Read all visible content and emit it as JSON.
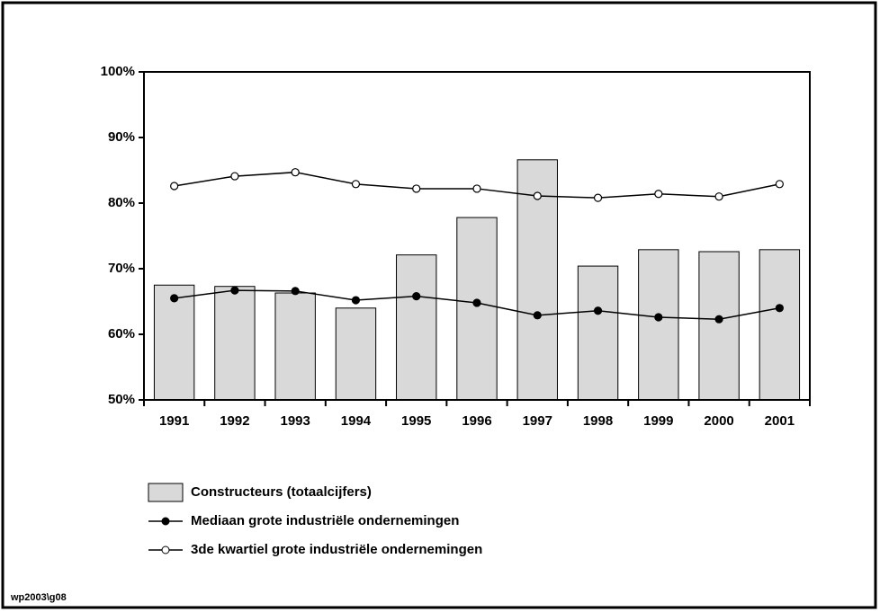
{
  "chart_data": {
    "type": "bar",
    "categories": [
      "1991",
      "1992",
      "1993",
      "1994",
      "1995",
      "1996",
      "1997",
      "1998",
      "1999",
      "2000",
      "2001"
    ],
    "series": [
      {
        "name": "Constructeurs (totaalcijfers)",
        "type": "bar",
        "color": "#d9d9d9",
        "values": [
          67.5,
          67.3,
          66.3,
          64.0,
          72.1,
          77.8,
          86.6,
          70.4,
          72.9,
          72.6,
          72.9
        ]
      },
      {
        "name": "Mediaan grote industriële ondernemingen",
        "type": "line",
        "color": "#000000",
        "marker": "filled",
        "values": [
          65.5,
          66.7,
          66.6,
          65.2,
          65.8,
          64.8,
          62.9,
          63.6,
          62.6,
          62.3,
          64.0
        ]
      },
      {
        "name": "3de kwartiel grote industriële ondernemingen",
        "type": "line",
        "color": "#000000",
        "marker": "open",
        "values": [
          82.6,
          84.1,
          84.7,
          82.9,
          82.2,
          82.2,
          81.1,
          80.8,
          81.4,
          81.0,
          82.9
        ]
      }
    ],
    "ylim": [
      50,
      100
    ],
    "yticks": [
      {
        "value": 50,
        "label": "50%"
      },
      {
        "value": 60,
        "label": "60%"
      },
      {
        "value": 70,
        "label": "70%"
      },
      {
        "value": 80,
        "label": "80%"
      },
      {
        "value": 90,
        "label": "90%"
      },
      {
        "value": 100,
        "label": "100%"
      }
    ],
    "footnote": "wp2003\\g08"
  }
}
